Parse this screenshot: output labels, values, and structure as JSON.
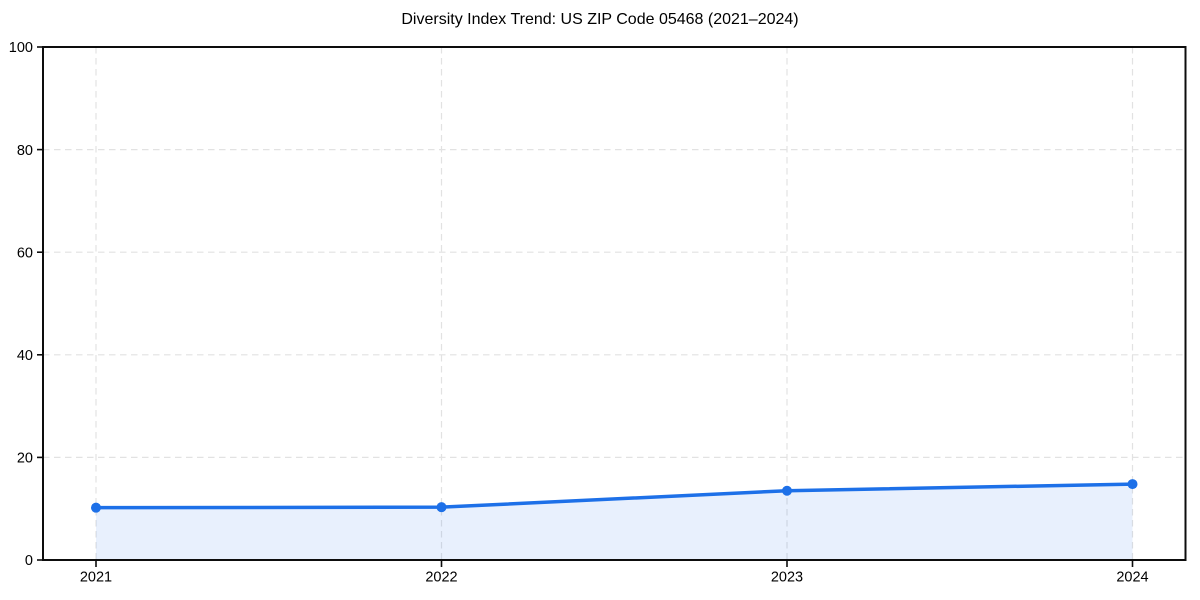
{
  "page": {
    "background": "#ffffff"
  },
  "chart_data": {
    "type": "line",
    "title": "Diversity Index Trend: US ZIP Code 05468 (2021–2024)",
    "xlabel": "",
    "ylabel": "",
    "x": [
      "2021",
      "2022",
      "2023",
      "2024"
    ],
    "series": [
      {
        "name": "Diversity Index",
        "values": [
          10.2,
          10.3,
          13.5,
          14.8
        ]
      }
    ],
    "ylim": [
      0,
      100
    ],
    "yticks": [
      0,
      20,
      40,
      60,
      80,
      100
    ],
    "grid": true,
    "grid_style": "dashed",
    "legend_position": "none",
    "area_fill": true,
    "marker": "circle",
    "colors": {
      "line": "#1d70e8",
      "marker": "#1d70e8",
      "fill": "#1d70e8",
      "fill_opacity": 0.1,
      "grid": "#e2e2e2",
      "frame": "#0d0d0d",
      "text": "#000000"
    }
  }
}
